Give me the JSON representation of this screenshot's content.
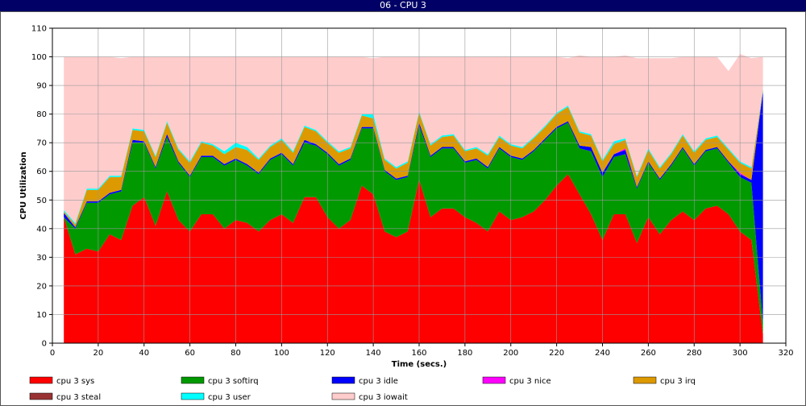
{
  "window": {
    "title": "06 - CPU 3"
  },
  "chart_data": {
    "type": "area",
    "stacked": true,
    "xlabel": "Time (secs.)",
    "ylabel": "CPU Utilization",
    "xlim": [
      0,
      320
    ],
    "ylim": [
      0,
      110
    ],
    "xticks": [
      0,
      20,
      40,
      60,
      80,
      100,
      120,
      140,
      160,
      180,
      200,
      220,
      240,
      260,
      280,
      300,
      320
    ],
    "yticks": [
      0,
      10,
      20,
      30,
      40,
      50,
      60,
      70,
      80,
      90,
      100,
      110
    ],
    "grid": true,
    "legend_position": "bottom",
    "x": [
      5,
      10,
      15,
      20,
      25,
      30,
      35,
      40,
      45,
      50,
      55,
      60,
      65,
      70,
      75,
      80,
      85,
      90,
      95,
      100,
      105,
      110,
      115,
      120,
      125,
      130,
      135,
      140,
      145,
      150,
      155,
      160,
      165,
      170,
      175,
      180,
      185,
      190,
      195,
      200,
      205,
      210,
      215,
      220,
      225,
      230,
      235,
      240,
      245,
      250,
      255,
      260,
      265,
      270,
      275,
      280,
      285,
      290,
      295,
      300,
      305,
      310
    ],
    "series": [
      {
        "name": "cpu 3 sys",
        "color": "#ff0000",
        "values": [
          44,
          31,
          33,
          32,
          38,
          36,
          48,
          51,
          41,
          53,
          43,
          39,
          45,
          45,
          40,
          43,
          42,
          39,
          43,
          45,
          42,
          51,
          51,
          44,
          40,
          43,
          55,
          52,
          39,
          37,
          39,
          57,
          44,
          47,
          47,
          44,
          42,
          39,
          46,
          43,
          44,
          46,
          50,
          55,
          59,
          52,
          45,
          36,
          45,
          45,
          35,
          44,
          38,
          43,
          46,
          43,
          47,
          48,
          45,
          39,
          36,
          3
        ]
      },
      {
        "name": "cpu 3 softirq",
        "color": "#009900",
        "values": [
          0,
          9,
          16,
          17,
          14,
          17,
          22,
          19,
          20,
          19,
          20,
          19,
          20,
          20,
          22,
          21,
          20,
          20,
          21,
          21,
          20,
          19,
          18,
          22,
          22,
          21,
          20,
          23,
          21,
          20,
          19,
          19,
          21,
          21,
          21,
          19,
          22,
          22,
          22,
          22,
          20,
          21,
          21,
          20,
          18,
          16,
          22,
          22,
          20,
          21,
          19,
          19,
          19,
          19,
          22,
          19,
          20,
          20,
          18,
          19,
          20,
          4
        ]
      },
      {
        "name": "cpu 3 idle",
        "color": "#0000ff",
        "values": [
          1.5,
          0.5,
          0.5,
          0.5,
          0.5,
          0.5,
          1,
          0.5,
          0.5,
          1,
          0.5,
          0.5,
          0.5,
          0.5,
          0.5,
          0.5,
          0.5,
          0.5,
          0.5,
          0.5,
          0.5,
          1,
          0.5,
          0.5,
          0.5,
          0.5,
          0.5,
          0.5,
          0.5,
          0.5,
          0.5,
          1,
          0.5,
          0.5,
          0.5,
          0.5,
          0.5,
          0.5,
          0.5,
          0.5,
          0.5,
          0.5,
          0.5,
          0.5,
          0.5,
          1,
          1.5,
          1.5,
          1,
          1.5,
          0.5,
          0.5,
          0.5,
          0.5,
          0.5,
          0.5,
          0.5,
          0.5,
          0.5,
          1,
          1,
          81
        ]
      },
      {
        "name": "cpu 3 nice",
        "color": "#ff00ff",
        "values": [
          0,
          0,
          0,
          0,
          0,
          0,
          0,
          0,
          0,
          0,
          0,
          0,
          0,
          0,
          0,
          0,
          0,
          0,
          0,
          0,
          0,
          0,
          0,
          0,
          0,
          0,
          0,
          0,
          0,
          0,
          0,
          0,
          0,
          0,
          0,
          0,
          0,
          0,
          0,
          0,
          0,
          0,
          0,
          0,
          0,
          0,
          0,
          0,
          0,
          0.5,
          0,
          0,
          0,
          0,
          0,
          0,
          0,
          0,
          0,
          0.5,
          0,
          0
        ]
      },
      {
        "name": "cpu 3 irq",
        "color": "#dd9900",
        "values": [
          0.5,
          1,
          4,
          4,
          5.5,
          4.5,
          3.5,
          3.5,
          3.5,
          4,
          4,
          4.5,
          4.5,
          3.5,
          3.5,
          4,
          5,
          4.5,
          4,
          4.5,
          4,
          4.5,
          4.5,
          3.5,
          4,
          3.5,
          4,
          3,
          3.5,
          3.5,
          4.5,
          3.5,
          3.5,
          3.5,
          4,
          3.5,
          3.5,
          4,
          3.5,
          3.5,
          3.5,
          4,
          4,
          4.5,
          5,
          4.5,
          4,
          4,
          3.5,
          3,
          3.5,
          4,
          3.5,
          3.5,
          4,
          4,
          3.5,
          3.5,
          4,
          3.5,
          4,
          0.5
        ]
      },
      {
        "name": "cpu 3 steal",
        "color": "#993333",
        "values": [
          0,
          0,
          0,
          0,
          0,
          0,
          0,
          0,
          0,
          0,
          0,
          0,
          0,
          0,
          0,
          0,
          0,
          0,
          0,
          0,
          0,
          0,
          0,
          0,
          0,
          0,
          0,
          0,
          0,
          0,
          0,
          0,
          0,
          0,
          0,
          0,
          0,
          0,
          0,
          0,
          0,
          0,
          0,
          0,
          0,
          0,
          0,
          0,
          0,
          0,
          0,
          0,
          0,
          0,
          0,
          0,
          0,
          0,
          0,
          0,
          0,
          0
        ]
      },
      {
        "name": "cpu 3 user",
        "color": "#00ffff",
        "values": [
          0.5,
          0.5,
          0.5,
          0.5,
          0.5,
          0.5,
          0.5,
          0.5,
          0.5,
          0.5,
          0.5,
          0.5,
          0.5,
          0.5,
          1,
          1.5,
          1,
          0.5,
          0.5,
          0.5,
          0.5,
          0.5,
          0.5,
          0.5,
          0.5,
          0.5,
          0.5,
          1.5,
          0.5,
          0.5,
          0.5,
          0.5,
          0.5,
          0.5,
          0.5,
          0.5,
          0.5,
          0.5,
          0.5,
          0.5,
          0.5,
          0.5,
          0.5,
          0.5,
          0.5,
          0.5,
          0.5,
          0.5,
          1,
          0.5,
          0.5,
          0.5,
          0.5,
          0.5,
          0.5,
          0.5,
          0.5,
          0.5,
          0.5,
          0.5,
          0.5,
          0.5
        ]
      },
      {
        "name": "cpu 3 iowait",
        "color": "#ffcccc",
        "values": [
          53.5,
          58,
          46,
          46,
          41.5,
          41,
          25,
          25.5,
          34.5,
          22.5,
          32,
          36.5,
          29.5,
          30.5,
          33,
          30,
          31.5,
          35.5,
          31,
          28.5,
          33,
          24,
          25.5,
          29.5,
          33,
          31.5,
          20,
          19.5,
          35.5,
          38.5,
          36.5,
          19,
          30.5,
          27.5,
          27,
          32.5,
          31.5,
          34,
          27.5,
          30.5,
          31.5,
          28,
          24,
          19.5,
          16.5,
          26.5,
          27,
          36,
          29.5,
          29,
          41,
          31.5,
          38,
          33,
          27,
          33,
          28.5,
          27.5,
          27,
          37.5,
          38,
          11
        ]
      }
    ]
  }
}
